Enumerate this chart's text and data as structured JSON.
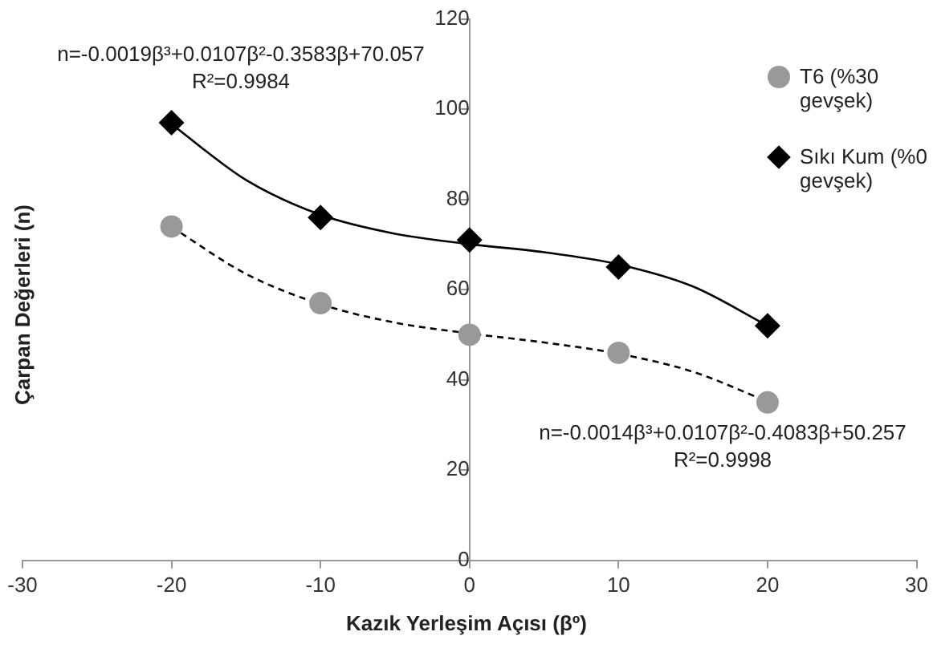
{
  "chart_data": {
    "type": "scatter",
    "xlabel": "Kazık Yerleşim Açısı (βº)",
    "ylabel": "Çarpan Değerleri (n)",
    "x": [
      -20,
      -10,
      0,
      10,
      20
    ],
    "series": [
      {
        "name": "T6 (%30 gevşek)",
        "color": "#999999",
        "marker": "circle",
        "values": [
          74,
          57,
          50,
          46,
          35
        ]
      },
      {
        "name": "Sıkı Kum (%0 gevşek)",
        "color": "#000000",
        "marker": "diamond",
        "values": [
          97,
          76,
          71,
          65,
          52
        ]
      },
      {
        "type": "line",
        "color": "#000000",
        "line_style": "solid",
        "marker": "none",
        "x": [
          -20,
          -15,
          -10,
          -5,
          0,
          5,
          10,
          15,
          20
        ],
        "values": [
          96.7,
          84.3,
          76.6,
          72.4,
          70.1,
          68.3,
          65.6,
          60.7,
          52.0
        ]
      },
      {
        "type": "line",
        "color": "#000000",
        "line_style": "dashed",
        "marker": "none",
        "x": [
          -20,
          -15,
          -10,
          -5,
          0,
          5,
          10,
          15,
          20
        ],
        "values": [
          73.9,
          63.5,
          56.8,
          52.7,
          50.3,
          48.3,
          45.8,
          41.8,
          35.2
        ]
      }
    ],
    "xlim": [
      -30,
      30
    ],
    "xticks": [
      -30,
      -20,
      -10,
      0,
      10,
      20,
      30
    ],
    "ylim": [
      0,
      120
    ],
    "yticks": [
      0,
      20,
      40,
      60,
      80,
      100,
      120
    ],
    "grid": false,
    "legend": "top right",
    "annotations": [
      "n=-0.0019β³+0.0107β²-0.3583β+70.057",
      "R²=0.9984",
      "n=-0.0014β³+0.0107β²-0.4083β+50.257",
      "R²=0.9998"
    ]
  }
}
